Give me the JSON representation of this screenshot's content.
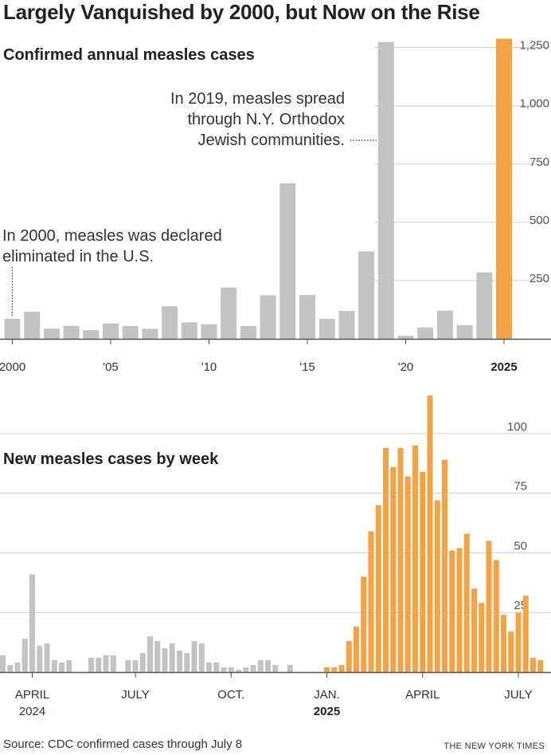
{
  "title": "Largely Vanquished by 2000, but Now on the Rise",
  "source": "Source: CDC confirmed cases through July 8",
  "credit": "THE NEW YORK TIMES",
  "colors": {
    "past": "#c3c3c3",
    "current": "#f4a244",
    "axis": "#555555",
    "grid": "#d0d0d0"
  },
  "annotations": {
    "eliminated_line1": "In 2000, measles was declared",
    "eliminated_line2": "eliminated in the U.S.",
    "ny_line1": "In 2019, measles spread",
    "ny_line2": "through N.Y. Orthodox",
    "ny_line3": "Jewish communities."
  },
  "chart_data": [
    {
      "type": "bar",
      "title": "Confirmed annual measles cases",
      "x": [
        2000,
        2001,
        2002,
        2003,
        2004,
        2005,
        2006,
        2007,
        2008,
        2009,
        2010,
        2011,
        2012,
        2013,
        2014,
        2015,
        2016,
        2017,
        2018,
        2019,
        2020,
        2021,
        2022,
        2023,
        2024,
        2025
      ],
      "values": [
        86,
        116,
        44,
        56,
        37,
        66,
        55,
        43,
        140,
        71,
        63,
        220,
        55,
        187,
        667,
        188,
        86,
        120,
        375,
        1274,
        13,
        49,
        121,
        59,
        285,
        1288
      ],
      "highlight_last": true,
      "x_ticks": [
        "2000",
        "'05",
        "'10",
        "'15",
        "'20",
        "2025"
      ],
      "x_tick_years": [
        2000,
        2005,
        2010,
        2015,
        2020,
        2025
      ],
      "y_ticks": [
        250,
        500,
        750,
        1000,
        1250
      ],
      "y_tick_labels": [
        "250",
        "500",
        "750",
        "1,000",
        "1,250"
      ],
      "ylim": [
        0,
        1300
      ],
      "grid": true
    },
    {
      "type": "bar",
      "title": "New measles cases by week",
      "weeks_2024": [
        7,
        3,
        4,
        14,
        41,
        11,
        12,
        5,
        4,
        5,
        0,
        0,
        6,
        6,
        7,
        7,
        0,
        5,
        5,
        8,
        15,
        13,
        10,
        12,
        9,
        8,
        13,
        12,
        4,
        4,
        2,
        2,
        1,
        2,
        3,
        5,
        5,
        3,
        0,
        3,
        0,
        0,
        0,
        0
      ],
      "weeks_2025": [
        2,
        2,
        3,
        13,
        19,
        40,
        59,
        70,
        94,
        86,
        94,
        82,
        95,
        84,
        116,
        72,
        89,
        51,
        52,
        58,
        35,
        29,
        55,
        47,
        24,
        17,
        25,
        32,
        6,
        5
      ],
      "x_ticks": [
        {
          "label": "APRIL",
          "sub": "2024"
        },
        {
          "label": "JULY",
          "sub": ""
        },
        {
          "label": "OCT.",
          "sub": ""
        },
        {
          "label": "JAN.",
          "sub": "2025"
        },
        {
          "label": "APRIL",
          "sub": ""
        },
        {
          "label": "JULY",
          "sub": ""
        }
      ],
      "x_tick_weeks": [
        4,
        18,
        31,
        44,
        57,
        70
      ],
      "y_ticks": [
        25,
        50,
        75,
        100
      ],
      "y_tick_labels": [
        "25",
        "50",
        "75",
        "100"
      ],
      "ylim": [
        0,
        118
      ],
      "grid": true
    }
  ]
}
